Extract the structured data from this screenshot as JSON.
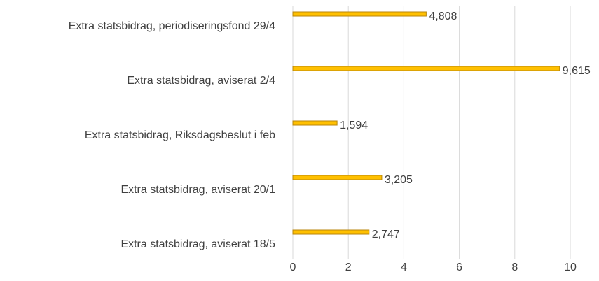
{
  "chart_data": {
    "type": "bar",
    "orientation": "horizontal",
    "categories": [
      "Extra statsbidrag, periodiseringsfond 29/4",
      "Extra statsbidrag, aviserat 2/4",
      "Extra statsbidrag, Riksdagsbeslut i feb",
      "Extra statsbidrag, aviserat 20/1",
      "Extra statsbidrag, aviserat 18/5"
    ],
    "values": [
      4.808,
      9.615,
      1.594,
      3.205,
      2.747
    ],
    "value_labels": [
      "4,808",
      "9,615",
      "1,594",
      "3,205",
      "2,747"
    ],
    "color": "#ffc000",
    "xlim": [
      0,
      10
    ],
    "xticks": [
      0,
      2,
      4,
      6,
      8,
      10
    ],
    "grid": true
  }
}
